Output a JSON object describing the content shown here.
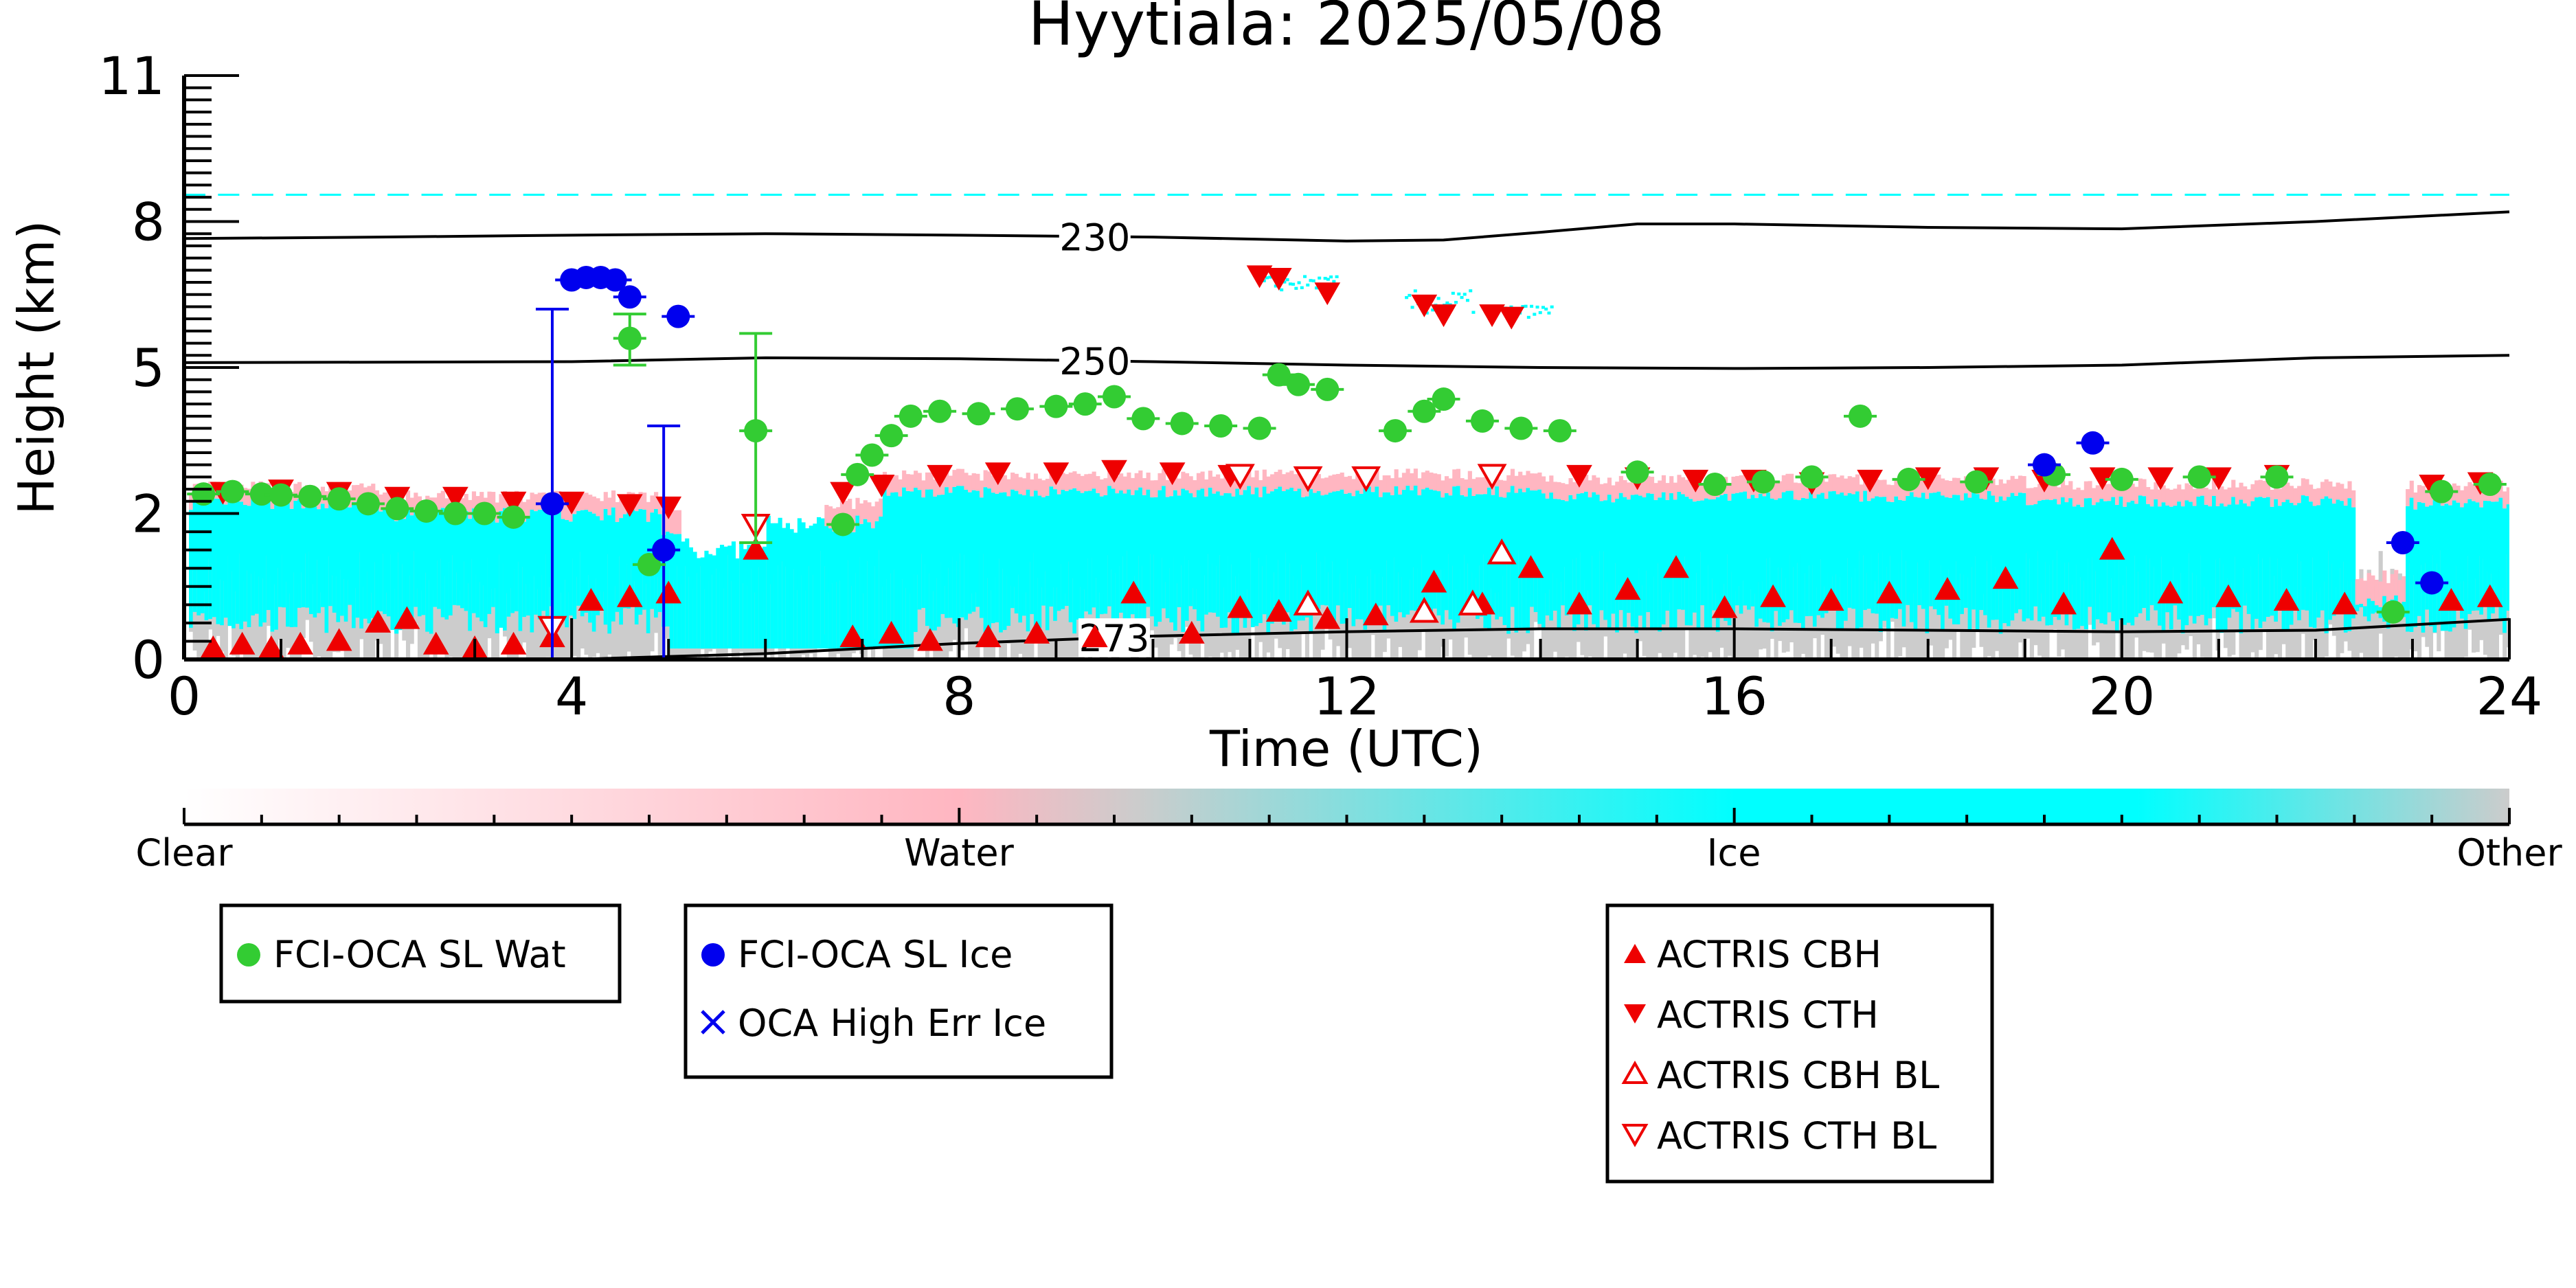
{
  "chart_data": {
    "type": "scatter",
    "title": "Hyytiala: 2025/05/08",
    "xlabel": "Time (UTC)",
    "ylabel": "Height (km)",
    "xlim": [
      0,
      24
    ],
    "ylim": [
      0,
      11
    ],
    "x_ticks": [
      0,
      4,
      8,
      12,
      16,
      20,
      24
    ],
    "x_tick_labels": [
      "0",
      "4",
      "8",
      "12",
      "16",
      "20",
      "24"
    ],
    "y_ticks": [
      0,
      2,
      5,
      8,
      11
    ],
    "y_tick_labels": [
      "0",
      "2",
      "5",
      "8",
      "11"
    ],
    "colors": {
      "clear": "#ffffff",
      "water": "#ffb6c1",
      "ice": "#00ffff",
      "other": "#cccccc",
      "fci_wat": "#33cc33",
      "fci_ice": "#0000ee",
      "actris": "#ee0000"
    },
    "colorbar": {
      "labels": [
        "Clear",
        "Water",
        "Ice",
        "Other"
      ]
    },
    "contours": [
      {
        "label": "230",
        "x": [
          0,
          2,
          4,
          6,
          8,
          10,
          12,
          13,
          14,
          15,
          16,
          18,
          20,
          22,
          24
        ],
        "y": [
          7.65,
          7.68,
          7.72,
          7.75,
          7.72,
          7.68,
          7.6,
          7.62,
          7.78,
          7.95,
          7.95,
          7.88,
          7.85,
          8.0,
          8.2
        ]
      },
      {
        "label": "250",
        "x": [
          0,
          4,
          6,
          8,
          10,
          12,
          14,
          16,
          18,
          20,
          22,
          24
        ],
        "y": [
          5.1,
          5.12,
          5.2,
          5.18,
          5.12,
          5.05,
          5.0,
          4.98,
          5.0,
          5.05,
          5.2,
          5.25
        ]
      },
      {
        "label": "273",
        "x": [
          0,
          4,
          6,
          8,
          10,
          12,
          14,
          16,
          18,
          20,
          22,
          24
        ],
        "y": [
          0.0,
          0.0,
          0.08,
          0.22,
          0.32,
          0.38,
          0.42,
          0.42,
          0.4,
          0.38,
          0.4,
          0.55
        ]
      }
    ],
    "fci_oca_sl_wat": {
      "name": "FCI-OCA SL Wat",
      "x": [
        0.2,
        0.5,
        0.8,
        1.0,
        1.3,
        1.6,
        1.9,
        2.2,
        2.5,
        2.8,
        3.1,
        3.4,
        4.6,
        4.8,
        5.9,
        6.8,
        6.95,
        7.1,
        7.3,
        7.5,
        7.8,
        8.2,
        8.6,
        9.0,
        9.3,
        9.6,
        9.9,
        10.3,
        10.7,
        11.1,
        11.3,
        11.5,
        11.8,
        12.5,
        12.8,
        13.0,
        13.4,
        13.8,
        14.2,
        15.0,
        15.8,
        16.3,
        16.8,
        17.3,
        17.8,
        18.5,
        19.3,
        20.0,
        20.8,
        21.6,
        22.8,
        23.3,
        23.8
      ],
      "y": [
        2.4,
        2.45,
        2.4,
        2.38,
        2.35,
        2.3,
        2.2,
        2.1,
        2.05,
        2.0,
        2.0,
        1.95,
        5.6,
        1.3,
        3.7,
        1.85,
        2.8,
        3.2,
        3.6,
        4.0,
        4.1,
        4.05,
        4.15,
        4.2,
        4.25,
        4.4,
        3.95,
        3.85,
        3.8,
        3.75,
        4.85,
        4.65,
        4.55,
        3.7,
        4.1,
        4.35,
        3.9,
        3.75,
        3.7,
        2.85,
        2.6,
        2.65,
        2.75,
        4.0,
        2.7,
        2.65,
        2.8,
        2.7,
        2.75,
        2.75,
        0.65,
        2.45,
        2.6
      ],
      "err_lo": [
        0,
        0,
        0,
        0,
        0,
        0,
        0,
        0,
        0,
        0,
        0,
        0,
        0.55,
        0,
        2.1,
        0,
        0,
        0,
        0,
        0,
        0,
        0,
        0,
        0,
        0,
        0,
        0,
        0,
        0,
        0,
        0,
        0,
        0,
        0,
        0,
        0,
        0,
        0,
        0,
        0,
        0,
        0,
        0,
        0,
        0,
        0,
        0,
        0,
        0,
        0,
        0,
        0,
        0
      ],
      "err_hi": [
        0,
        0,
        0,
        0,
        0,
        0,
        0,
        0,
        0,
        0,
        0,
        0,
        0.5,
        0,
        2.0,
        0,
        0,
        0,
        0,
        0,
        0,
        0,
        0,
        0,
        0,
        0,
        0,
        0,
        0,
        0,
        0,
        0,
        0,
        0,
        0,
        0,
        0,
        0,
        0,
        0,
        0,
        0,
        0,
        0,
        0,
        0,
        0,
        0,
        0,
        0,
        0,
        0,
        0
      ]
    },
    "fci_oca_sl_ice": {
      "name": "FCI-OCA SL Ice",
      "x": [
        3.8,
        4.0,
        4.15,
        4.3,
        4.45,
        4.6,
        5.1,
        4.95,
        19.2,
        19.7,
        22.9,
        23.2
      ],
      "y": [
        2.2,
        6.8,
        6.85,
        6.85,
        6.8,
        6.45,
        6.05,
        1.5,
        3.0,
        3.45,
        1.6,
        1.05
      ],
      "err_lo": [
        2.2,
        0,
        0,
        0,
        0,
        0,
        0,
        1.5,
        0,
        0,
        0,
        0
      ],
      "err_hi": [
        4.0,
        0,
        0,
        0,
        0,
        0,
        0,
        2.3,
        0,
        0,
        0,
        0
      ]
    },
    "oca_high_err_ice": {
      "name": "OCA High Err Ice",
      "x": [],
      "y": []
    },
    "actris_cbh": {
      "name": "ACTRIS CBH",
      "x": [
        0.3,
        0.6,
        0.9,
        1.2,
        1.6,
        2.0,
        2.3,
        2.6,
        3.0,
        3.4,
        3.8,
        4.2,
        4.6,
        5.0,
        5.9,
        6.9,
        7.3,
        7.7,
        8.3,
        8.8,
        9.4,
        9.8,
        10.4,
        10.9,
        11.3,
        11.8,
        12.3,
        12.9,
        13.4,
        13.9,
        14.4,
        14.9,
        15.4,
        15.9,
        16.4,
        17.0,
        17.6,
        18.2,
        18.8,
        19.4,
        19.9,
        20.5,
        21.1,
        21.7,
        22.3,
        23.4,
        23.8
      ],
      "y": [
        0.15,
        0.2,
        0.15,
        0.2,
        0.25,
        0.5,
        0.55,
        0.2,
        0.15,
        0.2,
        0.3,
        0.8,
        0.85,
        0.9,
        1.5,
        0.3,
        0.35,
        0.25,
        0.3,
        0.35,
        0.3,
        0.9,
        0.35,
        0.7,
        0.65,
        0.55,
        0.6,
        1.05,
        0.75,
        1.25,
        0.75,
        0.95,
        1.25,
        0.7,
        0.85,
        0.8,
        0.9,
        0.95,
        1.1,
        0.75,
        1.5,
        0.9,
        0.85,
        0.8,
        0.75,
        0.8,
        0.85
      ],
      "err_lo": [],
      "err_hi": []
    },
    "actris_cth": {
      "name": "ACTRIS CTH",
      "x": [
        0.4,
        1.0,
        1.6,
        2.2,
        2.8,
        3.4,
        4.0,
        4.6,
        5.0,
        6.8,
        7.2,
        7.8,
        8.4,
        9.0,
        9.6,
        10.2,
        10.8,
        11.1,
        11.3,
        11.8,
        12.8,
        13.0,
        13.5,
        13.7,
        14.4,
        15.0,
        15.6,
        16.2,
        16.8,
        17.4,
        18.0,
        18.6,
        19.2,
        19.8,
        20.4,
        21.0,
        21.6,
        23.2,
        23.7
      ],
      "y": [
        2.45,
        2.5,
        2.45,
        2.35,
        2.35,
        2.25,
        2.25,
        2.2,
        2.15,
        2.45,
        2.6,
        2.8,
        2.85,
        2.85,
        2.9,
        2.85,
        2.8,
        6.9,
        6.85,
        6.55,
        6.3,
        6.1,
        6.1,
        6.05,
        2.8,
        2.75,
        2.7,
        2.7,
        2.65,
        2.7,
        2.75,
        2.75,
        2.7,
        2.75,
        2.75,
        2.75,
        2.8,
        2.6,
        2.65
      ],
      "err_lo": [],
      "err_hi": []
    },
    "actris_cbh_bl": {
      "name": "ACTRIS CBH BL",
      "x": [
        11.6,
        12.8,
        13.3,
        13.6
      ],
      "y": [
        0.75,
        0.65,
        0.75,
        1.45
      ],
      "err_lo": [],
      "err_hi": []
    },
    "actris_cth_bl": {
      "name": "ACTRIS CTH BL",
      "x": [
        3.8,
        5.9,
        10.9,
        11.6,
        12.2,
        13.5
      ],
      "y": [
        0.45,
        1.85,
        2.8,
        2.75,
        2.75,
        2.8
      ],
      "err_lo": [],
      "err_hi": []
    },
    "legend": {
      "groups": [
        [
          "FCI-OCA SL Wat"
        ],
        [
          "FCI-OCA SL Ice",
          "OCA High Err Ice"
        ],
        [
          "ACTRIS CBH",
          "ACTRIS CTH",
          "ACTRIS CBH BL",
          "ACTRIS CTH BL"
        ]
      ],
      "placement": "bottom"
    }
  }
}
